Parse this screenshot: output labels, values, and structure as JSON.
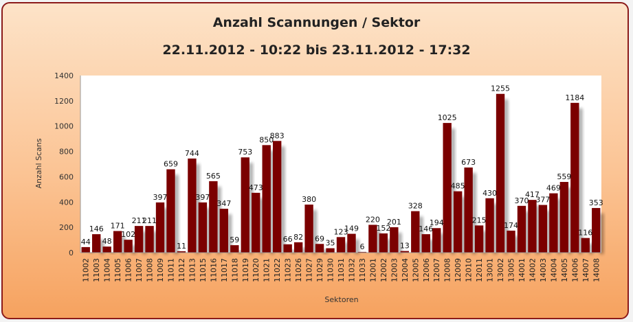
{
  "chart_data": {
    "type": "bar",
    "title": "Anzahl Scannungen / Sektor",
    "subtitle": "22.11.2012 - 10:22 bis 23.11.2012 - 17:32",
    "xlabel": "Sektoren",
    "ylabel": "Anzahl Scans",
    "ylim": [
      0,
      1400
    ],
    "yticks": [
      0,
      200,
      400,
      600,
      800,
      1000,
      1200,
      1400
    ],
    "grid": false,
    "bar_color": "#7b0000",
    "categories": [
      "11002",
      "11003",
      "11004",
      "11005",
      "11006",
      "11007",
      "11008",
      "11009",
      "11011",
      "11012",
      "11013",
      "11015",
      "11016",
      "11017",
      "11018",
      "11019",
      "11020",
      "11021",
      "11022",
      "11023",
      "11026",
      "11027",
      "11029",
      "11030",
      "11031",
      "11032",
      "11033",
      "12001",
      "12002",
      "12003",
      "12004",
      "12005",
      "12006",
      "12007",
      "12008",
      "12009",
      "12010",
      "12011",
      "13001",
      "13002",
      "13005",
      "14001",
      "14002",
      "14003",
      "14004",
      "14005",
      "14006",
      "14007",
      "14008"
    ],
    "values": [
      44,
      146,
      48,
      171,
      102,
      211,
      211,
      397,
      659,
      11,
      744,
      397,
      565,
      347,
      59,
      753,
      473,
      850,
      883,
      66,
      82,
      380,
      69,
      35,
      123,
      149,
      6,
      220,
      152,
      201,
      13,
      328,
      146,
      194,
      1025,
      485,
      673,
      215,
      430,
      1255,
      174,
      370,
      417,
      377,
      469,
      559,
      1184,
      116,
      353
    ],
    "data_labels": [
      "44",
      "146",
      "48",
      "171",
      "102",
      "211",
      "211",
      "397",
      "659",
      "11",
      "744",
      "397",
      "565",
      "347",
      "59",
      "753",
      "473",
      "850",
      "883",
      "66",
      "82",
      "380",
      "69",
      "35",
      "123",
      "149",
      "6",
      "220",
      "152",
      "201",
      "13",
      "328",
      "146",
      "194",
      "1025",
      "485",
      "673",
      "215",
      "430",
      "1255",
      "174",
      "370",
      "417",
      "377",
      "469",
      "559",
      "1184",
      "116",
      "353"
    ]
  }
}
